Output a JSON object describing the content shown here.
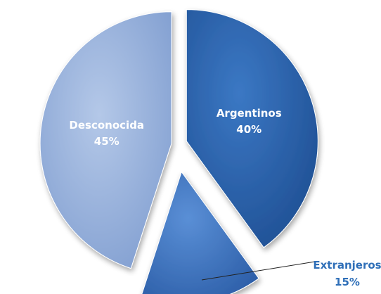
{
  "chart_data": {
    "type": "pie",
    "title": "",
    "legend": "none",
    "slices": [
      {
        "label": "Argentinos",
        "value": 40,
        "value_label": "40%",
        "color": "#2f63a8"
      },
      {
        "label": "Extranjeros",
        "value": 15,
        "value_label": "15%",
        "color": "#3f74bd"
      },
      {
        "label": "Desconocida",
        "value": 45,
        "value_label": "45%",
        "color": "#8ea9d6"
      }
    ],
    "label_colors": {
      "inside": "#ffffff",
      "outside": "#2f6fb8"
    }
  }
}
